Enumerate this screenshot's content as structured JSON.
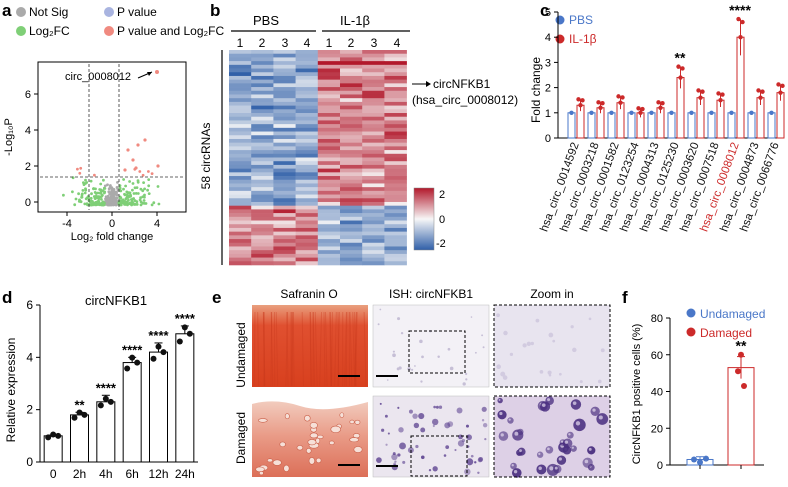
{
  "panels": {
    "a": {
      "label": "a",
      "legend": [
        "Not Sig",
        "P value",
        "Log₂FC",
        "P value and Log₂FC"
      ],
      "legend_colors": [
        "#aaaaaa",
        "#a9b4e0",
        "#7fcf77",
        "#f08a80"
      ],
      "annotation": "circ_0008012",
      "xlabel": "Log₂ fold change",
      "ylabel": "-Log₁₀P",
      "xticks": [
        "-4",
        "0",
        "4"
      ],
      "yticks": [
        "0",
        "2",
        "4",
        "6"
      ]
    },
    "b": {
      "label": "b",
      "group_labels": [
        "PBS",
        "IL-1β"
      ],
      "col_labels": [
        "1",
        "2",
        "3",
        "4",
        "1",
        "2",
        "3",
        "4"
      ],
      "row_label": "58 circRNAs",
      "callout_line1": "circNFKB1",
      "callout_line2": "(hsa_circ_0008012)",
      "colorbar_ticks": [
        "2",
        "0",
        "-2"
      ]
    },
    "c": {
      "label": "c",
      "legend": [
        "PBS",
        "IL-1β"
      ],
      "ylabel": "Fold change",
      "highlight_category": "hsa_circ_0008012",
      "sig_marks": [
        "**",
        "****"
      ]
    },
    "d": {
      "label": "d",
      "title": "circNFKB1",
      "ylabel": "Relative expression",
      "sig_marks": [
        "**",
        "****",
        "****",
        "****",
        "****"
      ]
    },
    "e": {
      "label": "e",
      "col_titles": [
        "Safranin O",
        "ISH: circNFKB1",
        "Zoom in"
      ],
      "row_titles": [
        "Undamaged",
        "Damaged"
      ]
    },
    "f": {
      "label": "f",
      "legend": [
        "Undamaged",
        "Damaged"
      ],
      "ylabel": "CircNFKB1 positive cells (%)",
      "sig_mark": "**"
    }
  },
  "chart_data": [
    {
      "panel": "c",
      "type": "bar",
      "categories": [
        "hsa_circ_0014592",
        "hsa_circ_0003218",
        "hsa_circ_0001582",
        "hsa_circ_0123254",
        "hsa_circ_0004313",
        "hsa_circ_0125230",
        "hsa_circ_0003620",
        "hsa_circ_0007518",
        "hsa_circ_0008012",
        "hsa_circ_0004873",
        "hsa_circ_0066776"
      ],
      "series": [
        {
          "name": "PBS",
          "values": [
            1,
            1,
            1,
            1,
            1,
            1,
            1,
            1,
            1,
            1,
            1
          ],
          "color": "#4a77c8"
        },
        {
          "name": "IL-1β",
          "values": [
            1.3,
            1.2,
            1.4,
            1.0,
            1.2,
            2.4,
            1.6,
            1.5,
            4.0,
            1.6,
            1.8
          ],
          "color": "#cc2a2a"
        }
      ],
      "ylabel": "Fold change",
      "ylim": [
        0,
        5
      ],
      "yticks": [
        0,
        1,
        2,
        3,
        4,
        5
      ]
    },
    {
      "panel": "d",
      "type": "bar",
      "title": "circNFKB1",
      "categories": [
        "0",
        "2h",
        "4h",
        "6h",
        "12h",
        "24h"
      ],
      "values": [
        1.0,
        1.8,
        2.3,
        3.8,
        4.2,
        4.9
      ],
      "errors": [
        0.03,
        0.1,
        0.25,
        0.2,
        0.35,
        0.3
      ],
      "ylabel": "Relative expression",
      "ylim": [
        0,
        6
      ],
      "yticks": [
        0,
        2,
        4,
        6
      ]
    },
    {
      "panel": "f",
      "type": "bar",
      "categories": [
        "Undamaged",
        "Damaged"
      ],
      "values": [
        3,
        53
      ],
      "errors": [
        1.5,
        6
      ],
      "colors": [
        "#4a77c8",
        "#cc2a2a"
      ],
      "ylabel": "CircNFKB1 positive cells (%)",
      "ylim": [
        0,
        80
      ],
      "yticks": [
        0,
        20,
        40,
        60,
        80
      ]
    }
  ]
}
